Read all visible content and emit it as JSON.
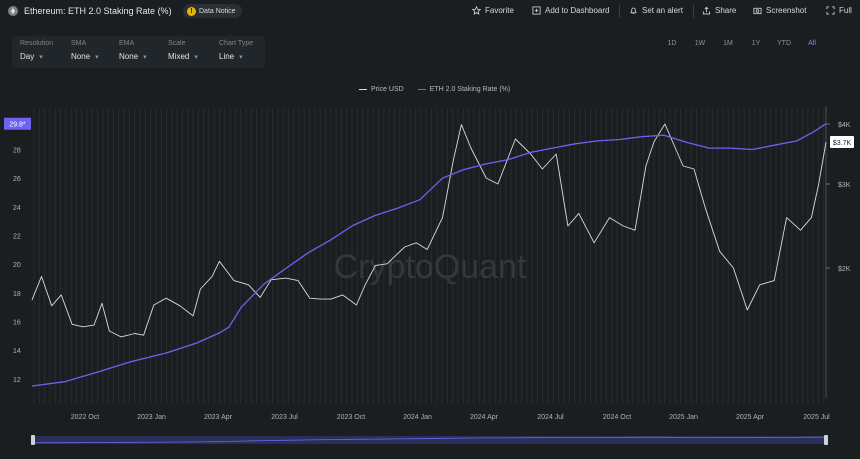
{
  "header": {
    "title": "Ethereum: ETH 2.0 Staking Rate (%)",
    "notice": "Data Notice",
    "actions": [
      "Favorite",
      "Add to Dashboard",
      "Set an alert",
      "Share",
      "Screenshot",
      "Full"
    ]
  },
  "controls": [
    {
      "label": "Resolution",
      "value": "Day"
    },
    {
      "label": "SMA",
      "value": "None"
    },
    {
      "label": "EMA",
      "value": "None"
    },
    {
      "label": "Scale",
      "value": "Mixed"
    },
    {
      "label": "Chart Type",
      "value": "Line"
    }
  ],
  "ranges": [
    "1D",
    "1W",
    "1M",
    "1Y",
    "YTD",
    "All"
  ],
  "active_range": "All",
  "watermark": "CryptoQuant",
  "colors": {
    "background": "#1b1e21",
    "price": "#d9dadc",
    "staking": "#6c63f2",
    "accent": "#8b83ff"
  },
  "chart_data": {
    "type": "line",
    "title": "Ethereum: ETH 2.0 Staking Rate (%)",
    "grid": true,
    "legend": "top-center",
    "x_ticks": [
      "2022 Oct",
      "2023 Jan",
      "2023 Apr",
      "2023 Jul",
      "2023 Oct",
      "2024 Jan",
      "2024 Apr",
      "2024 Jul",
      "2024 Oct",
      "2025 Jan",
      "2025 Apr",
      "2025 Jul"
    ],
    "x_range": [
      "2022-08-01",
      "2025-07-25"
    ],
    "y_left": {
      "ticks": [
        12,
        14,
        16,
        18,
        20,
        22,
        24,
        26,
        28
      ],
      "range": [
        10.8,
        30.2
      ],
      "current_label": "29.8*"
    },
    "y_right": {
      "ticks": [
        "$4K",
        "$3K",
        "$2K"
      ],
      "tick_values": [
        4000,
        3000,
        2000
      ],
      "current_label": "$3.7K"
    },
    "series": [
      {
        "name": "Price USD",
        "axis": "right",
        "x": [
          "2022-08-01",
          "2022-08-14",
          "2022-08-28",
          "2022-09-10",
          "2022-09-25",
          "2022-10-10",
          "2022-10-25",
          "2022-11-05",
          "2022-11-15",
          "2022-12-01",
          "2022-12-20",
          "2023-01-01",
          "2023-01-15",
          "2023-02-01",
          "2023-02-20",
          "2023-03-10",
          "2023-03-20",
          "2023-04-05",
          "2023-04-15",
          "2023-05-05",
          "2023-05-25",
          "2023-06-10",
          "2023-06-25",
          "2023-07-15",
          "2023-08-01",
          "2023-08-17",
          "2023-09-01",
          "2023-09-15",
          "2023-10-01",
          "2023-10-20",
          "2023-11-01",
          "2023-11-15",
          "2023-12-01",
          "2023-12-25",
          "2024-01-10",
          "2024-01-25",
          "2024-02-15",
          "2024-03-01",
          "2024-03-12",
          "2024-03-25",
          "2024-04-15",
          "2024-05-01",
          "2024-05-25",
          "2024-06-15",
          "2024-07-01",
          "2024-07-20",
          "2024-08-05",
          "2024-08-20",
          "2024-09-10",
          "2024-10-01",
          "2024-10-20",
          "2024-11-05",
          "2024-11-20",
          "2024-12-01",
          "2024-12-16",
          "2025-01-10",
          "2025-01-25",
          "2025-02-10",
          "2025-03-01",
          "2025-03-20",
          "2025-04-08",
          "2025-04-25",
          "2025-05-15",
          "2025-06-01",
          "2025-06-20",
          "2025-07-05",
          "2025-07-15",
          "2025-07-25"
        ],
        "values": [
          1620,
          1900,
          1550,
          1680,
          1330,
          1300,
          1320,
          1580,
          1250,
          1180,
          1220,
          1200,
          1560,
          1640,
          1550,
          1430,
          1750,
          1900,
          2080,
          1850,
          1800,
          1650,
          1860,
          1880,
          1850,
          1640,
          1630,
          1630,
          1680,
          1560,
          1800,
          2030,
          2050,
          2250,
          2300,
          2220,
          2600,
          3400,
          3990,
          3600,
          3100,
          3000,
          3750,
          3500,
          3250,
          3500,
          2500,
          2650,
          2300,
          2600,
          2500,
          2450,
          3300,
          3700,
          4000,
          3300,
          3250,
          2700,
          2200,
          2000,
          1500,
          1800,
          1850,
          2600,
          2450,
          2600,
          3000,
          3700
        ]
      },
      {
        "name": "ETH 2.0 Staking Rate (%)",
        "axis": "left",
        "x": [
          "2022-08-01",
          "2022-09-15",
          "2022-11-01",
          "2022-12-15",
          "2023-02-01",
          "2023-03-15",
          "2023-04-15",
          "2023-04-28",
          "2023-05-15",
          "2023-06-15",
          "2023-07-15",
          "2023-08-15",
          "2023-09-15",
          "2023-10-15",
          "2023-11-15",
          "2023-12-15",
          "2024-01-15",
          "2024-02-15",
          "2024-03-15",
          "2024-04-15",
          "2024-05-15",
          "2024-06-15",
          "2024-07-15",
          "2024-08-15",
          "2024-09-15",
          "2024-10-15",
          "2024-11-15",
          "2024-12-15",
          "2025-01-15",
          "2025-02-15",
          "2025-03-15",
          "2025-04-15",
          "2025-05-15",
          "2025-06-15",
          "2025-07-10",
          "2025-07-25"
        ],
        "values": [
          11.5,
          11.8,
          12.5,
          13.2,
          13.8,
          14.5,
          15.2,
          15.6,
          17.0,
          18.6,
          19.7,
          20.8,
          21.7,
          22.7,
          23.4,
          23.9,
          24.5,
          26.0,
          26.6,
          27.0,
          27.3,
          27.8,
          28.1,
          28.4,
          28.6,
          28.7,
          28.9,
          29.0,
          28.5,
          28.1,
          28.1,
          28.0,
          28.3,
          28.6,
          29.3,
          29.8
        ]
      }
    ]
  }
}
